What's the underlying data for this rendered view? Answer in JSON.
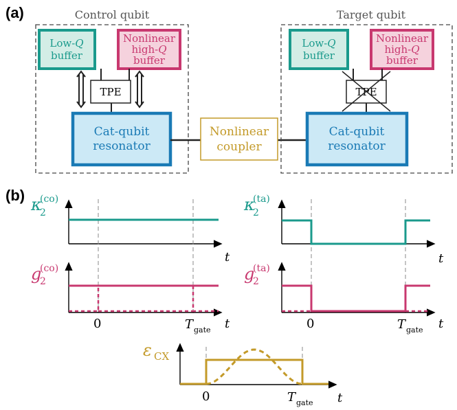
{
  "panels": {
    "a": "(a)",
    "b": "(b)"
  },
  "control": {
    "title": "Control qubit",
    "lowq_line1": "Low-",
    "lowq_q": "Q",
    "lowq_line2": "buffer",
    "nonlin_line1": "Nonlinear",
    "nonlin_line2a": "high-",
    "nonlin_q": "Q",
    "nonlin_line3": "buffer",
    "tpe": "TPE",
    "cat_line1": "Cat-qubit",
    "cat_line2": "resonator"
  },
  "coupler": {
    "line1": "Nonlinear",
    "line2": "coupler"
  },
  "target": {
    "title": "Target qubit",
    "lowq_line1": "Low-",
    "lowq_q": "Q",
    "lowq_line2": "buffer",
    "nonlin_line1": "Nonlinear",
    "nonlin_line2a": "high-",
    "nonlin_q": "Q",
    "nonlin_line3": "buffer",
    "tpe": "TPE",
    "cat_line1": "Cat-qubit",
    "cat_line2": "resonator"
  },
  "plots": {
    "kappa_co": {
      "sym": "κ",
      "sub": "2",
      "sup": "(co)"
    },
    "kappa_ta": {
      "sym": "κ",
      "sub": "2",
      "sup": "(ta)"
    },
    "g_co": {
      "sym": "g",
      "sub": "2",
      "sup": "(co)"
    },
    "g_ta": {
      "sym": "g",
      "sub": "2",
      "sup": "(ta)"
    },
    "eps": {
      "sym": "ε",
      "sub": "CX"
    },
    "t_label": "t",
    "zero": "0",
    "tgate": "T",
    "tgate_sub": "gate"
  },
  "colors": {
    "teal": "#1a9a8c",
    "teal_fill": "#d3ede6",
    "pink": "#c8386f",
    "pink_fill": "#f5d2dd",
    "blue": "#1a7ab5",
    "blue_fill": "#cce9f6",
    "gold": "#c39a29",
    "gray": "#555555"
  }
}
